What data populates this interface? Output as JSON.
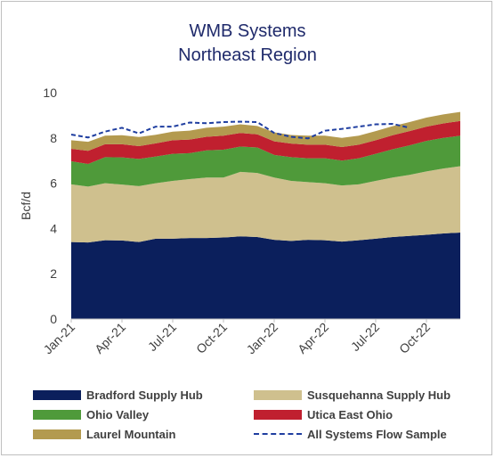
{
  "chart_data": {
    "type": "area",
    "title": "WMB Systems",
    "subtitle": "Northeast Region",
    "ylabel": "Bcf/d",
    "xlabel": "",
    "ylim": [
      0,
      10
    ],
    "yticks": [
      "0",
      "2",
      "4",
      "6",
      "8",
      "10"
    ],
    "xticks": [
      "Jan-21",
      "Apr-21",
      "Jul-21",
      "Oct-21",
      "Jan-22",
      "Apr-22",
      "Jul-22",
      "Oct-22"
    ],
    "x": [
      "Jan-21",
      "Feb-21",
      "Mar-21",
      "Apr-21",
      "May-21",
      "Jun-21",
      "Jul-21",
      "Aug-21",
      "Sep-21",
      "Oct-21",
      "Nov-21",
      "Dec-21",
      "Jan-22",
      "Feb-22",
      "Mar-22",
      "Apr-22",
      "May-22",
      "Jun-22",
      "Jul-22",
      "Aug-22",
      "Sep-22",
      "Oct-22",
      "Nov-22",
      "Dec-22"
    ],
    "stacked": true,
    "grid": false,
    "legend_position": "bottom",
    "series": [
      {
        "name": "Bradford Supply Hub",
        "color": "#0b1f5c",
        "values": [
          3.4,
          3.38,
          3.48,
          3.47,
          3.4,
          3.55,
          3.55,
          3.58,
          3.58,
          3.6,
          3.65,
          3.62,
          3.5,
          3.45,
          3.5,
          3.48,
          3.42,
          3.48,
          3.55,
          3.62,
          3.67,
          3.72,
          3.78,
          3.82
        ]
      },
      {
        "name": "Susquehanna Supply Hub",
        "color": "#cfc08e",
        "values": [
          2.55,
          2.47,
          2.52,
          2.47,
          2.47,
          2.45,
          2.55,
          2.6,
          2.67,
          2.65,
          2.85,
          2.83,
          2.75,
          2.65,
          2.55,
          2.52,
          2.48,
          2.47,
          2.55,
          2.63,
          2.7,
          2.8,
          2.87,
          2.93
        ]
      },
      {
        "name": "Ohio Valley",
        "color": "#4f9a3a",
        "values": [
          1.02,
          1.0,
          1.15,
          1.2,
          1.2,
          1.18,
          1.2,
          1.15,
          1.2,
          1.23,
          1.12,
          1.13,
          1.0,
          1.05,
          1.05,
          1.1,
          1.1,
          1.15,
          1.2,
          1.25,
          1.3,
          1.35,
          1.35,
          1.35
        ]
      },
      {
        "name": "Utica East Ohio",
        "color": "#c0202f",
        "values": [
          0.55,
          0.58,
          0.57,
          0.58,
          0.57,
          0.58,
          0.6,
          0.6,
          0.6,
          0.62,
          0.6,
          0.58,
          0.6,
          0.6,
          0.6,
          0.6,
          0.6,
          0.6,
          0.6,
          0.62,
          0.63,
          0.63,
          0.64,
          0.65
        ]
      },
      {
        "name": "Laurel Mountain",
        "color": "#b39a4f",
        "values": [
          0.38,
          0.4,
          0.38,
          0.4,
          0.4,
          0.38,
          0.38,
          0.39,
          0.4,
          0.4,
          0.38,
          0.37,
          0.4,
          0.38,
          0.4,
          0.4,
          0.4,
          0.4,
          0.4,
          0.4,
          0.4,
          0.4,
          0.4,
          0.4
        ]
      }
    ],
    "line_series": {
      "name": "All Systems Flow Sample",
      "color": "#1f3ea0",
      "style": "dashed",
      "x": [
        "Jan-21",
        "Feb-21",
        "Mar-21",
        "Apr-21",
        "May-21",
        "Jun-21",
        "Jul-21",
        "Aug-21",
        "Sep-21",
        "Oct-21",
        "Nov-21",
        "Dec-21",
        "Jan-22",
        "Feb-22",
        "Mar-22",
        "Apr-22",
        "May-22",
        "Jun-22",
        "Jul-22",
        "Aug-22",
        "Sep-22"
      ],
      "values": [
        8.15,
        8.02,
        8.28,
        8.45,
        8.2,
        8.5,
        8.5,
        8.68,
        8.65,
        8.7,
        8.72,
        8.7,
        8.22,
        8.05,
        7.98,
        8.32,
        8.4,
        8.5,
        8.6,
        8.62,
        8.45
      ]
    }
  }
}
